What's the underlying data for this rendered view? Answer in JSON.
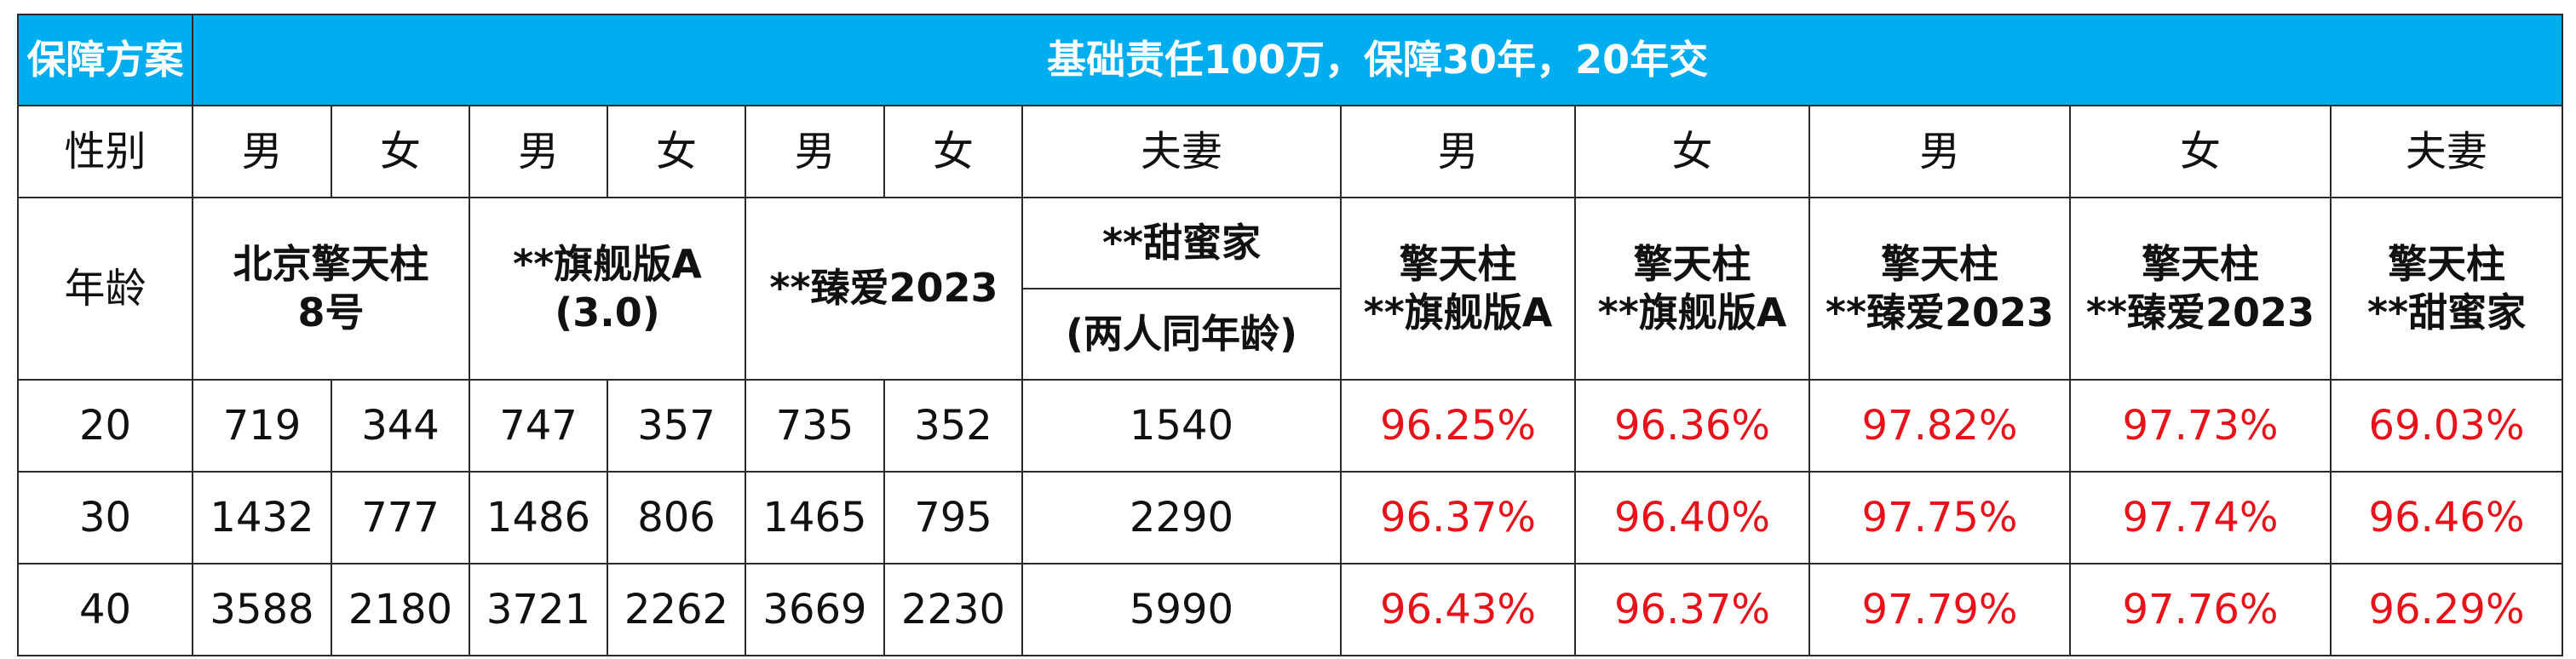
{
  "header": {
    "plan_label": "保障方案",
    "plan_title": "基础责任100万，保障30年，20年交"
  },
  "sex_row": {
    "label": "性别",
    "cells": [
      "男",
      "女",
      "男",
      "女",
      "男",
      "女",
      "夫妻",
      "男",
      "女",
      "男",
      "女",
      "夫妻"
    ]
  },
  "age_label": "年龄",
  "products": {
    "p1": [
      "北京擎天柱",
      "8号"
    ],
    "p2": [
      "**旗舰版A",
      "(3.0)"
    ],
    "p3": [
      "**臻爱2023"
    ],
    "p4_top": "**甜蜜家",
    "p4_bottom": "(两人同年龄)",
    "ratio1": [
      "擎天柱",
      "**旗舰版A"
    ],
    "ratio2": [
      "擎天柱",
      "**旗舰版A"
    ],
    "ratio3": [
      "擎天柱",
      "**臻爱2023"
    ],
    "ratio4": [
      "擎天柱",
      "**臻爱2023"
    ],
    "ratio5": [
      "擎天柱",
      "**甜蜜家"
    ]
  },
  "rows": [
    {
      "age": "20",
      "values": [
        "719",
        "344",
        "747",
        "357",
        "735",
        "352",
        "1540"
      ],
      "ratios": [
        "96.25%",
        "96.36%",
        "97.82%",
        "97.73%",
        "69.03%"
      ]
    },
    {
      "age": "30",
      "values": [
        "1432",
        "777",
        "1486",
        "806",
        "1465",
        "795",
        "2290"
      ],
      "ratios": [
        "96.37%",
        "96.40%",
        "97.75%",
        "97.74%",
        "96.46%"
      ]
    },
    {
      "age": "40",
      "values": [
        "3588",
        "2180",
        "3721",
        "2262",
        "3669",
        "2230",
        "5990"
      ],
      "ratios": [
        "96.43%",
        "96.37%",
        "97.79%",
        "97.76%",
        "96.29%"
      ]
    }
  ],
  "colors": {
    "header_bg": "#00adef",
    "header_text": "#ffffff",
    "ratio_text": "#e8121b",
    "border": "#2b2b2b"
  }
}
